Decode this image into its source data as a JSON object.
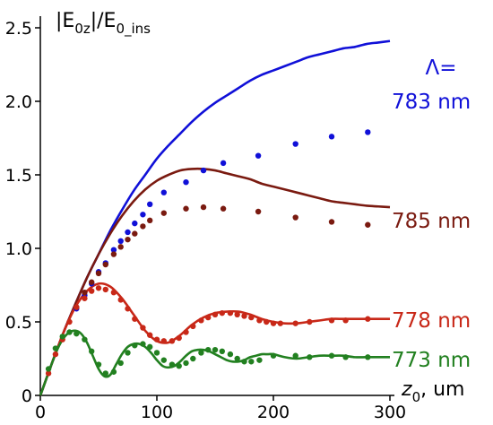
{
  "chart_data": {
    "type": "line",
    "ylabel": "|E0z|/E0_ins",
    "ylabel_parts": {
      "pre": "|E",
      "sub1": "0z",
      "mid": "|/E",
      "sub2": "0_ins"
    },
    "xlabel": "z0, um",
    "xlabel_parts": {
      "base": "z",
      "sub": "0",
      "rest": ", um"
    },
    "xlim": [
      0,
      300
    ],
    "ylim": [
      0,
      2.5
    ],
    "xticks": [
      0,
      100,
      200,
      300
    ],
    "xtick_labels": [
      "0",
      "100",
      "200",
      "300"
    ],
    "yticks": [
      0,
      0.5,
      1.0,
      1.5,
      2.0,
      2.5
    ],
    "ytick_labels": [
      "0",
      "0.5",
      "1.0",
      "1.5",
      "2.0",
      "2.5"
    ],
    "grid": false,
    "legend_title": "Λ=",
    "series": [
      {
        "name": "783 nm",
        "color": "#1010d8",
        "line": {
          "x": [
            0,
            5,
            10,
            20,
            30,
            40,
            50,
            60,
            70,
            80,
            90,
            100,
            110,
            120,
            130,
            140,
            150,
            160,
            170,
            180,
            190,
            200,
            210,
            220,
            230,
            240,
            250,
            260,
            270,
            280,
            290,
            300
          ],
          "y": [
            0,
            0.11,
            0.22,
            0.43,
            0.62,
            0.8,
            0.96,
            1.12,
            1.26,
            1.39,
            1.5,
            1.61,
            1.7,
            1.78,
            1.86,
            1.93,
            1.99,
            2.04,
            2.09,
            2.14,
            2.18,
            2.21,
            2.24,
            2.27,
            2.3,
            2.32,
            2.34,
            2.36,
            2.37,
            2.39,
            2.4,
            2.41
          ]
        },
        "points": {
          "x": [
            31,
            38,
            44,
            50,
            56,
            63,
            69,
            75,
            81,
            88,
            94,
            106,
            125,
            140,
            157,
            187,
            219,
            250,
            281
          ],
          "y": [
            0.59,
            0.68,
            0.76,
            0.84,
            0.9,
            0.99,
            1.05,
            1.11,
            1.17,
            1.23,
            1.3,
            1.38,
            1.45,
            1.53,
            1.58,
            1.63,
            1.71,
            1.76,
            1.79
          ]
        }
      },
      {
        "name": "785 nm",
        "color": "#7a1a10",
        "line": {
          "x": [
            0,
            5,
            10,
            20,
            30,
            40,
            50,
            60,
            70,
            80,
            90,
            100,
            110,
            120,
            130,
            140,
            150,
            160,
            170,
            180,
            190,
            200,
            210,
            220,
            230,
            240,
            250,
            260,
            270,
            280,
            290,
            300
          ],
          "y": [
            0,
            0.11,
            0.22,
            0.43,
            0.62,
            0.8,
            0.96,
            1.1,
            1.22,
            1.32,
            1.4,
            1.46,
            1.5,
            1.53,
            1.54,
            1.54,
            1.53,
            1.51,
            1.49,
            1.47,
            1.44,
            1.42,
            1.4,
            1.38,
            1.36,
            1.34,
            1.32,
            1.31,
            1.3,
            1.29,
            1.285,
            1.28
          ]
        },
        "points": {
          "x": [
            31,
            38,
            44,
            50,
            56,
            63,
            69,
            75,
            81,
            88,
            94,
            106,
            125,
            140,
            157,
            187,
            219,
            250,
            281
          ],
          "y": [
            0.6,
            0.7,
            0.77,
            0.83,
            0.89,
            0.96,
            1.01,
            1.06,
            1.1,
            1.15,
            1.19,
            1.24,
            1.27,
            1.28,
            1.27,
            1.25,
            1.21,
            1.18,
            1.16
          ]
        }
      },
      {
        "name": "778 nm",
        "color": "#c82818",
        "line": {
          "x": [
            0,
            5,
            10,
            20,
            30,
            40,
            50,
            60,
            70,
            80,
            90,
            100,
            110,
            120,
            130,
            140,
            150,
            160,
            170,
            180,
            190,
            200,
            210,
            220,
            230,
            240,
            250,
            260,
            270,
            280,
            290,
            300
          ],
          "y": [
            0,
            0.11,
            0.22,
            0.43,
            0.6,
            0.71,
            0.76,
            0.74,
            0.66,
            0.55,
            0.44,
            0.37,
            0.36,
            0.41,
            0.48,
            0.53,
            0.56,
            0.57,
            0.57,
            0.55,
            0.52,
            0.5,
            0.49,
            0.49,
            0.5,
            0.51,
            0.52,
            0.52,
            0.52,
            0.52,
            0.52,
            0.52
          ]
        },
        "points": {
          "x": [
            7,
            13,
            19,
            25,
            31,
            38,
            44,
            50,
            56,
            63,
            69,
            75,
            81,
            88,
            94,
            100,
            106,
            113,
            119,
            125,
            131,
            138,
            144,
            150,
            156,
            163,
            169,
            175,
            181,
            188,
            194,
            200,
            206,
            219,
            231,
            250,
            262,
            281
          ],
          "y": [
            0.15,
            0.28,
            0.38,
            0.5,
            0.6,
            0.66,
            0.71,
            0.73,
            0.72,
            0.7,
            0.65,
            0.59,
            0.52,
            0.46,
            0.41,
            0.38,
            0.37,
            0.37,
            0.39,
            0.43,
            0.47,
            0.51,
            0.53,
            0.55,
            0.56,
            0.56,
            0.55,
            0.54,
            0.53,
            0.51,
            0.5,
            0.49,
            0.49,
            0.49,
            0.5,
            0.51,
            0.51,
            0.52
          ]
        }
      },
      {
        "name": "773 nm",
        "color": "#228020",
        "line": {
          "x": [
            0,
            5,
            10,
            15,
            20,
            25,
            30,
            35,
            40,
            45,
            50,
            55,
            60,
            65,
            70,
            75,
            80,
            85,
            90,
            95,
            100,
            105,
            110,
            115,
            120,
            125,
            130,
            135,
            140,
            145,
            150,
            155,
            160,
            165,
            170,
            175,
            180,
            185,
            190,
            195,
            200,
            210,
            220,
            230,
            240,
            250,
            260,
            270,
            280,
            290,
            300
          ],
          "y": [
            0,
            0.11,
            0.22,
            0.32,
            0.39,
            0.43,
            0.44,
            0.42,
            0.36,
            0.27,
            0.18,
            0.13,
            0.14,
            0.21,
            0.28,
            0.33,
            0.35,
            0.35,
            0.33,
            0.29,
            0.24,
            0.2,
            0.19,
            0.2,
            0.23,
            0.27,
            0.3,
            0.31,
            0.31,
            0.3,
            0.28,
            0.26,
            0.24,
            0.23,
            0.23,
            0.24,
            0.26,
            0.27,
            0.28,
            0.28,
            0.28,
            0.26,
            0.25,
            0.26,
            0.27,
            0.27,
            0.27,
            0.26,
            0.26,
            0.26,
            0.26
          ]
        },
        "points": {
          "x": [
            7,
            13,
            19,
            25,
            31,
            38,
            44,
            50,
            56,
            63,
            69,
            75,
            81,
            88,
            94,
            100,
            106,
            113,
            119,
            125,
            131,
            138,
            144,
            150,
            156,
            163,
            169,
            175,
            181,
            188,
            200,
            219,
            231,
            250,
            262,
            281
          ],
          "y": [
            0.18,
            0.32,
            0.4,
            0.43,
            0.42,
            0.38,
            0.3,
            0.21,
            0.15,
            0.16,
            0.22,
            0.29,
            0.34,
            0.35,
            0.33,
            0.29,
            0.24,
            0.21,
            0.2,
            0.22,
            0.25,
            0.29,
            0.31,
            0.31,
            0.3,
            0.28,
            0.25,
            0.23,
            0.23,
            0.24,
            0.27,
            0.27,
            0.26,
            0.27,
            0.26,
            0.26
          ]
        }
      }
    ]
  }
}
